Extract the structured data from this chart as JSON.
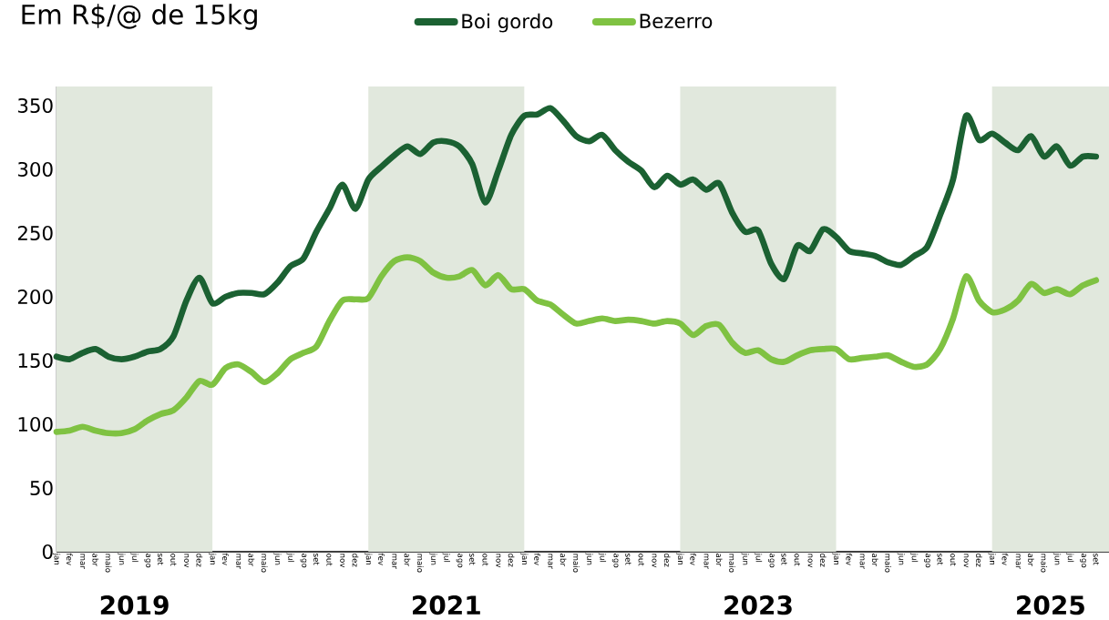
{
  "chart_data": {
    "type": "line",
    "title": "Em R$/@ de 15kg",
    "legend": "top",
    "x": [
      "2019-01",
      "2019-02",
      "2019-03",
      "2019-04",
      "2019-05",
      "2019-06",
      "2019-07",
      "2019-08",
      "2019-09",
      "2019-10",
      "2019-11",
      "2019-12",
      "2020-01",
      "2020-02",
      "2020-03",
      "2020-04",
      "2020-05",
      "2020-06",
      "2020-07",
      "2020-08",
      "2020-09",
      "2020-10",
      "2020-11",
      "2020-12",
      "2021-01",
      "2021-02",
      "2021-03",
      "2021-04",
      "2021-05",
      "2021-06",
      "2021-07",
      "2021-08",
      "2021-09",
      "2021-10",
      "2021-11",
      "2021-12",
      "2022-01",
      "2022-02",
      "2022-03",
      "2022-04",
      "2022-05",
      "2022-06",
      "2022-07",
      "2022-08",
      "2022-09",
      "2022-10",
      "2022-11",
      "2022-12",
      "2023-01",
      "2023-02",
      "2023-03",
      "2023-04",
      "2023-05",
      "2023-06",
      "2023-07",
      "2023-08",
      "2023-09",
      "2023-10",
      "2023-11",
      "2023-12",
      "2024-01",
      "2024-02",
      "2024-03",
      "2024-04",
      "2024-05",
      "2024-06",
      "2024-07",
      "2024-08",
      "2024-09",
      "2024-10",
      "2024-11",
      "2024-12",
      "2025-01",
      "2025-02",
      "2025-03",
      "2025-04",
      "2025-05",
      "2025-06",
      "2025-07",
      "2025-08",
      "2025-09"
    ],
    "series": [
      {
        "name": "Boi gordo",
        "color": "#1b6132",
        "values": [
          153,
          151,
          156,
          159,
          153,
          151,
          153,
          157,
          159,
          169,
          197,
          215,
          195,
          200,
          203,
          203,
          202,
          211,
          224,
          230,
          251,
          269,
          288,
          269,
          292,
          302,
          311,
          318,
          312,
          321,
          322,
          318,
          304,
          274,
          299,
          327,
          342,
          343,
          348,
          338,
          326,
          322,
          327,
          315,
          306,
          299,
          286,
          295,
          288,
          292,
          284,
          289,
          266,
          251,
          252,
          226,
          214,
          240,
          236,
          253,
          247,
          236,
          234,
          232,
          227,
          225,
          232,
          239,
          264,
          292,
          342,
          323,
          328,
          321,
          315,
          326,
          310,
          318,
          303,
          310,
          310
        ]
      },
      {
        "name": "Bezerro",
        "color": "#7fc242",
        "values": [
          94,
          95,
          98,
          95,
          93,
          93,
          96,
          103,
          108,
          111,
          121,
          134,
          131,
          144,
          147,
          141,
          133,
          140,
          151,
          156,
          161,
          181,
          197,
          198,
          199,
          216,
          228,
          231,
          228,
          219,
          215,
          216,
          221,
          209,
          217,
          206,
          206,
          197,
          194,
          186,
          179,
          181,
          183,
          181,
          182,
          181,
          179,
          181,
          179,
          170,
          177,
          178,
          164,
          156,
          158,
          151,
          149,
          154,
          158,
          159,
          159,
          151,
          152,
          153,
          154,
          149,
          145,
          147,
          159,
          183,
          216,
          197,
          188,
          190,
          197,
          210,
          203,
          206,
          202,
          209,
          213
        ]
      }
    ],
    "xlim": [
      "2019-01",
      "2025-10"
    ],
    "xticks": [
      {
        "value": "2019-01",
        "label": "jan"
      },
      {
        "value": "2019-02",
        "label": "fev"
      },
      {
        "value": "2019-03",
        "label": "mar"
      },
      {
        "value": "2019-04",
        "label": "abr"
      },
      {
        "value": "2019-05",
        "label": "maio"
      },
      {
        "value": "2019-06",
        "label": "jun"
      },
      {
        "value": "2019-07",
        "label": "jul"
      },
      {
        "value": "2019-08",
        "label": "ago"
      },
      {
        "value": "2019-09",
        "label": "set"
      },
      {
        "value": "2019-10",
        "label": "out"
      },
      {
        "value": "2019-11",
        "label": "nov"
      },
      {
        "value": "2019-12",
        "label": "dez"
      },
      {
        "value": "2020-01",
        "label": "jan"
      },
      {
        "value": "2020-02",
        "label": "fev"
      },
      {
        "value": "2020-03",
        "label": "mar"
      },
      {
        "value": "2020-04",
        "label": "abr"
      },
      {
        "value": "2020-05",
        "label": "maio"
      },
      {
        "value": "2020-06",
        "label": "jun"
      },
      {
        "value": "2020-07",
        "label": "jul"
      },
      {
        "value": "2020-08",
        "label": "ago"
      },
      {
        "value": "2020-09",
        "label": "set"
      },
      {
        "value": "2020-10",
        "label": "out"
      },
      {
        "value": "2020-11",
        "label": "nov"
      },
      {
        "value": "2020-12",
        "label": "dez"
      },
      {
        "value": "2021-01",
        "label": "jan"
      },
      {
        "value": "2021-02",
        "label": "fev"
      },
      {
        "value": "2021-03",
        "label": "mar"
      },
      {
        "value": "2021-04",
        "label": "abr"
      },
      {
        "value": "2021-05",
        "label": "maio"
      },
      {
        "value": "2021-06",
        "label": "jun"
      },
      {
        "value": "2021-07",
        "label": "jul"
      },
      {
        "value": "2021-08",
        "label": "ago"
      },
      {
        "value": "2021-09",
        "label": "set"
      },
      {
        "value": "2021-10",
        "label": "out"
      },
      {
        "value": "2021-11",
        "label": "nov"
      },
      {
        "value": "2021-12",
        "label": "dez"
      },
      {
        "value": "2022-01",
        "label": "jan"
      },
      {
        "value": "2022-02",
        "label": "fev"
      },
      {
        "value": "2022-03",
        "label": "mar"
      },
      {
        "value": "2022-04",
        "label": "abr"
      },
      {
        "value": "2022-05",
        "label": "maio"
      },
      {
        "value": "2022-06",
        "label": "jun"
      },
      {
        "value": "2022-07",
        "label": "jul"
      },
      {
        "value": "2022-08",
        "label": "ago"
      },
      {
        "value": "2022-09",
        "label": "set"
      },
      {
        "value": "2022-10",
        "label": "out"
      },
      {
        "value": "2022-11",
        "label": "nov"
      },
      {
        "value": "2022-12",
        "label": "dez"
      },
      {
        "value": "2023-01",
        "label": "jan"
      },
      {
        "value": "2023-02",
        "label": "fev"
      },
      {
        "value": "2023-03",
        "label": "mar"
      },
      {
        "value": "2023-04",
        "label": "abr"
      },
      {
        "value": "2023-05",
        "label": "maio"
      },
      {
        "value": "2023-06",
        "label": "jun"
      },
      {
        "value": "2023-07",
        "label": "jul"
      },
      {
        "value": "2023-08",
        "label": "ago"
      },
      {
        "value": "2023-09",
        "label": "set"
      },
      {
        "value": "2023-10",
        "label": "out"
      },
      {
        "value": "2023-11",
        "label": "nov"
      },
      {
        "value": "2023-12",
        "label": "dez"
      },
      {
        "value": "2024-01",
        "label": "jan"
      },
      {
        "value": "2024-02",
        "label": "fev"
      },
      {
        "value": "2024-03",
        "label": "mar"
      },
      {
        "value": "2024-04",
        "label": "abr"
      },
      {
        "value": "2024-05",
        "label": "maio"
      },
      {
        "value": "2024-06",
        "label": "jun"
      },
      {
        "value": "2024-07",
        "label": "jul"
      },
      {
        "value": "2024-08",
        "label": "ago"
      },
      {
        "value": "2024-09",
        "label": "set"
      },
      {
        "value": "2024-10",
        "label": "out"
      },
      {
        "value": "2024-11",
        "label": "nov"
      },
      {
        "value": "2024-12",
        "label": "dez"
      },
      {
        "value": "2025-01",
        "label": "jan"
      },
      {
        "value": "2025-02",
        "label": "fev"
      },
      {
        "value": "2025-03",
        "label": "mar"
      },
      {
        "value": "2025-04",
        "label": "abr"
      },
      {
        "value": "2025-05",
        "label": "maio"
      },
      {
        "value": "2025-06",
        "label": "jun"
      },
      {
        "value": "2025-07",
        "label": "jul"
      },
      {
        "value": "2025-08",
        "label": "ago"
      },
      {
        "value": "2025-09",
        "label": "set"
      }
    ],
    "ylim": [
      0,
      365
    ],
    "yticks": [
      0,
      50,
      100,
      150,
      200,
      250,
      300,
      350
    ],
    "bands": [
      {
        "axis": "x",
        "from": "2019-01",
        "to": "2020-01",
        "label": "2019",
        "color": "#e1e8dd"
      },
      {
        "axis": "x",
        "from": "2021-01",
        "to": "2022-01",
        "label": "2021",
        "color": "#e1e8dd"
      },
      {
        "axis": "x",
        "from": "2023-01",
        "to": "2024-01",
        "label": "2023",
        "color": "#e1e8dd"
      },
      {
        "axis": "x",
        "from": "2025-01",
        "to": "2025-10",
        "label": "2025",
        "color": "#e1e8dd"
      }
    ]
  }
}
